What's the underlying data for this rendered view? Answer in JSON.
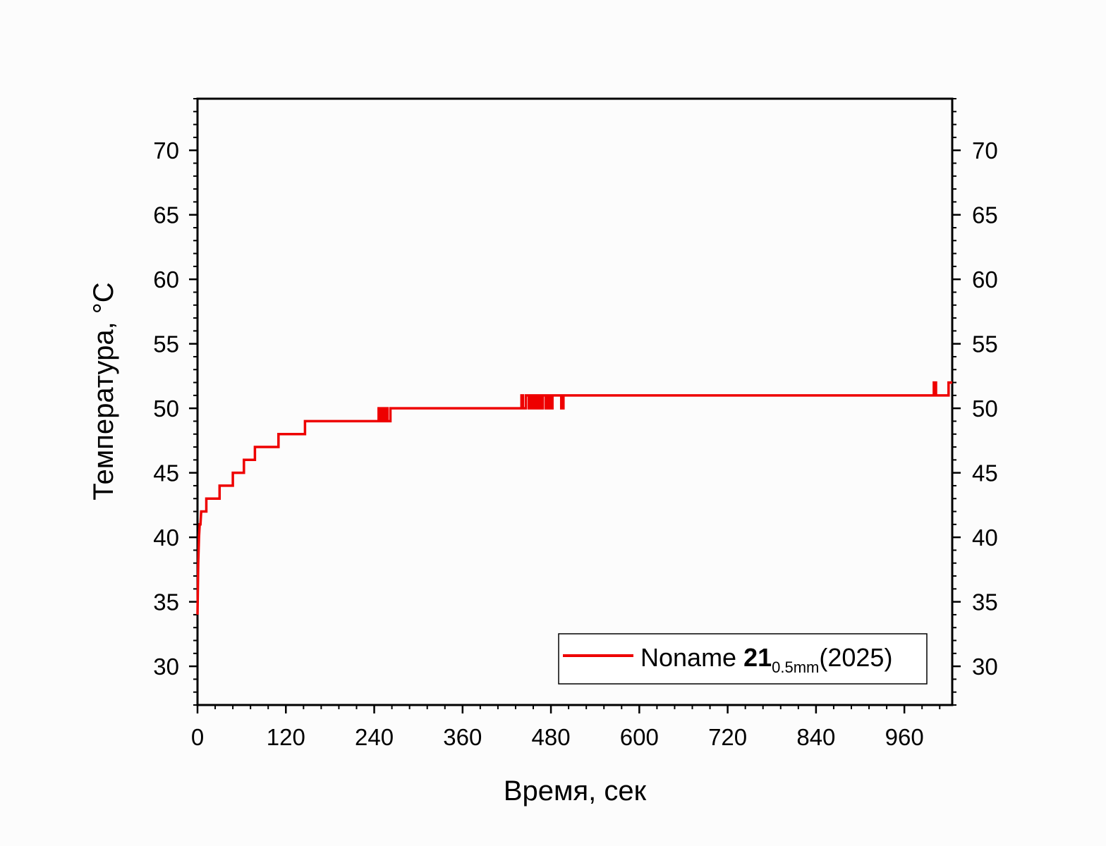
{
  "chart_data": {
    "type": "line",
    "xlabel": "Время, сек",
    "ylabel": "Температура, °С",
    "xlim": [
      0,
      1025
    ],
    "ylim": [
      27,
      74
    ],
    "xticks": [
      0,
      120,
      240,
      360,
      480,
      600,
      720,
      840,
      960
    ],
    "yticks": [
      30,
      35,
      40,
      45,
      50,
      55,
      60,
      65,
      70
    ],
    "x_minor_step": 24,
    "y_minor_step": 1,
    "grid": false,
    "mirror_y_axis": true,
    "legend_position": "bottom-right",
    "line_color": "#ee0000",
    "legend": {
      "name": "Noname",
      "bold": "21",
      "subscript": "0.5mm",
      "suffix": "(2025)"
    },
    "series": [
      {
        "name": "Noname 21 0.5mm (2025)",
        "color": "#ee0000",
        "x": [
          0,
          1,
          2,
          3,
          4,
          5,
          6,
          7,
          12,
          12,
          18,
          18,
          30,
          30,
          40,
          40,
          48,
          48,
          53,
          53,
          58,
          58,
          63,
          63,
          74,
          74,
          78,
          78,
          92,
          92,
          95,
          95,
          110,
          110,
          113,
          113,
          125,
          125,
          146,
          146,
          149,
          149,
          246,
          246,
          248,
          248,
          251,
          251,
          253,
          253,
          256,
          256,
          258,
          258,
          262,
          262,
          270,
          440,
          440,
          442,
          442,
          446,
          446,
          450,
          450,
          452,
          452,
          455,
          455,
          457,
          457,
          460,
          460,
          463,
          463,
          466,
          466,
          469,
          469,
          473,
          473,
          476,
          476,
          479,
          479,
          482,
          482,
          485,
          485,
          494,
          494,
          497,
          497,
          500,
          1000,
          1000,
          1003,
          1003,
          1020,
          1020,
          1025
        ],
        "y": [
          34,
          38,
          40,
          41,
          41,
          42,
          42,
          42,
          42,
          43,
          43,
          43,
          43,
          44,
          44,
          44,
          44,
          45,
          45,
          45,
          45,
          45,
          45,
          46,
          46,
          46,
          46,
          47,
          47,
          47,
          47,
          47,
          47,
          48,
          48,
          48,
          48,
          48,
          48,
          49,
          49,
          49,
          49,
          50,
          50,
          49,
          49,
          50,
          50,
          49,
          49,
          50,
          50,
          49,
          49,
          50,
          50,
          50,
          51,
          51,
          50,
          50,
          51,
          51,
          50,
          50,
          51,
          51,
          50,
          50,
          51,
          51,
          50,
          50,
          51,
          51,
          50,
          50,
          51,
          51,
          50,
          50,
          51,
          51,
          50,
          50,
          51,
          51,
          51,
          51,
          50,
          50,
          51,
          51,
          51,
          52,
          52,
          51,
          51,
          52,
          52
        ]
      }
    ]
  }
}
